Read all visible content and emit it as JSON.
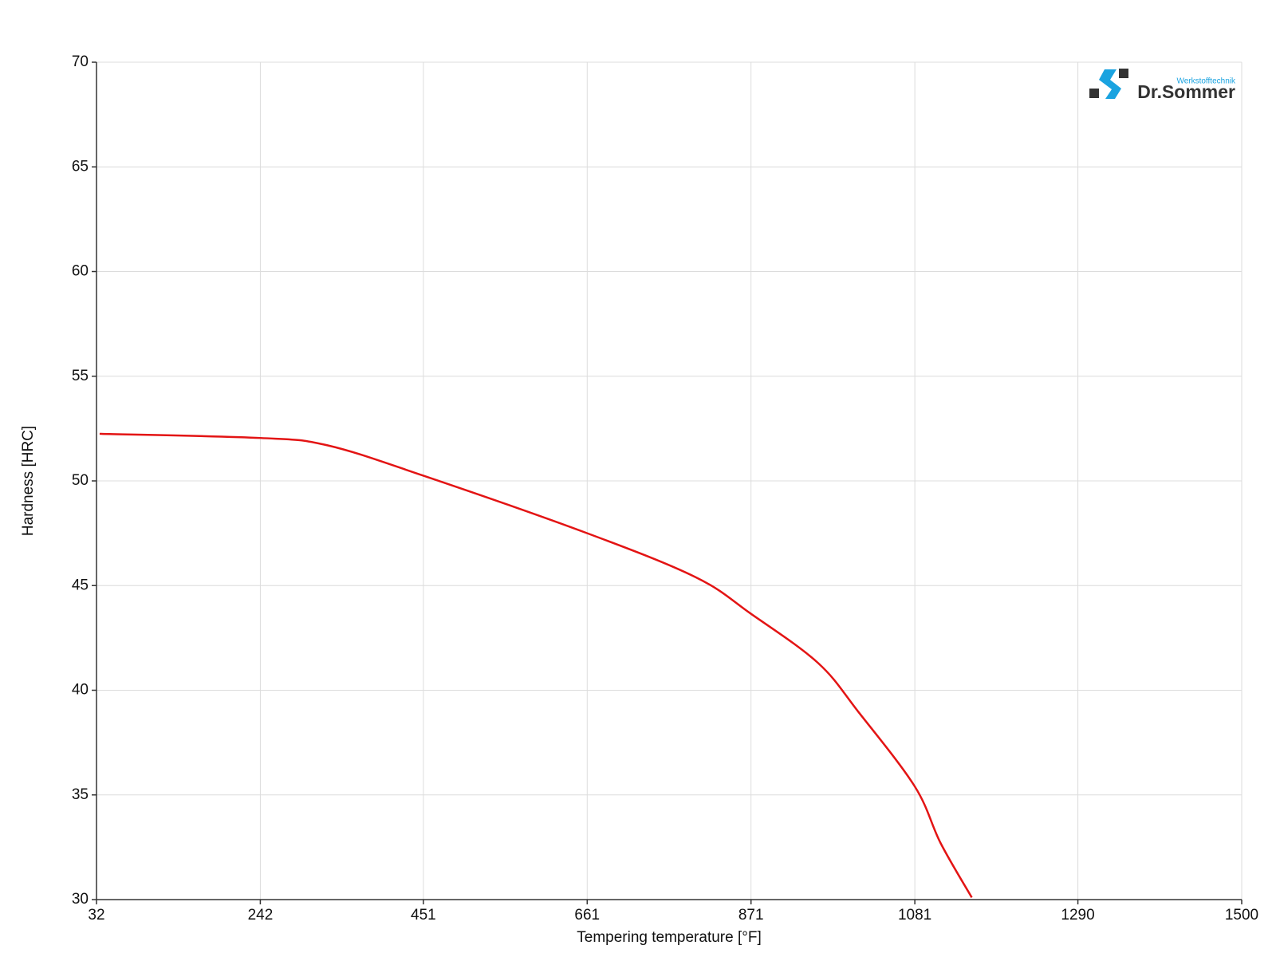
{
  "chart_data": {
    "type": "line",
    "x_label": "Tempering temperature [°F]",
    "y_label": "Hardness [HRC]",
    "series": [
      {
        "color": "#e31414",
        "x": [
          36,
          242,
          328,
          451,
          661,
          800,
          871,
          957,
          1009,
          1081,
          1114,
          1154
        ],
        "values": [
          52.25,
          52.05,
          51.7,
          50.25,
          47.5,
          45.4,
          43.65,
          41.3,
          38.95,
          35.4,
          32.7,
          30.1
        ]
      }
    ],
    "xlim": [
      32,
      1500
    ],
    "xticks": [
      32,
      242,
      451,
      661,
      871,
      1081,
      1290,
      1500
    ],
    "ylim": [
      30,
      70
    ],
    "yticks": [
      30,
      35,
      40,
      45,
      50,
      55,
      60,
      65,
      70
    ],
    "grid": true
  },
  "logo": {
    "subtitle": "Werkstofftechnik",
    "name": "Dr.Sommer"
  }
}
